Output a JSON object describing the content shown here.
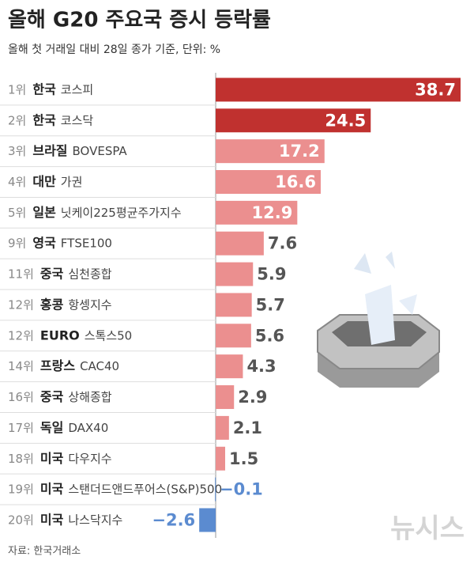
{
  "chart_data": {
    "type": "bar",
    "title": "올해 G20 주요국 증시 등락률",
    "subtitle": "올해 첫 거래일 대비 28일 종가 기준, 단위: %",
    "ranks": [
      "1위",
      "2위",
      "3위",
      "4위",
      "5위",
      "9위",
      "11위",
      "12위",
      "12위",
      "14위",
      "16위",
      "17위",
      "18위",
      "19위",
      "20위"
    ],
    "countries": [
      "한국",
      "한국",
      "브라질",
      "대만",
      "일본",
      "영국",
      "중국",
      "홍콩",
      "EURO",
      "프랑스",
      "중국",
      "독일",
      "미국",
      "미국",
      "미국"
    ],
    "categories": [
      "코스피",
      "코스닥",
      "BOVESPA",
      "가권",
      "닛케이225평균주가지수",
      "FTSE100",
      "심천종합",
      "항셍지수",
      "스톡스50",
      "CAC40",
      "상해종합",
      "DAX40",
      "다우지수",
      "스탠더드앤드푸어스(S&P)500",
      "나스닥지수"
    ],
    "values": [
      38.7,
      24.5,
      17.2,
      16.6,
      12.9,
      7.6,
      5.9,
      5.7,
      5.6,
      4.3,
      2.9,
      2.1,
      1.5,
      -0.1,
      -2.6
    ],
    "value_labels": [
      "38.7",
      "24.5",
      "17.2",
      "16.6",
      "12.9",
      "7.6",
      "5.9",
      "5.7",
      "5.6",
      "4.3",
      "2.9",
      "2.1",
      "1.5",
      "−0.1",
      "−2.6"
    ],
    "colors": [
      "#c0312f",
      "#c0312f",
      "#eb8f8f",
      "#eb8f8f",
      "#eb8f8f",
      "#eb8f8f",
      "#eb8f8f",
      "#eb8f8f",
      "#eb8f8f",
      "#eb8f8f",
      "#eb8f8f",
      "#eb8f8f",
      "#eb8f8f",
      "#5b8bd0",
      "#5b8bd0"
    ],
    "source": "자료: 한국거래소",
    "watermark": "뉴시스"
  }
}
